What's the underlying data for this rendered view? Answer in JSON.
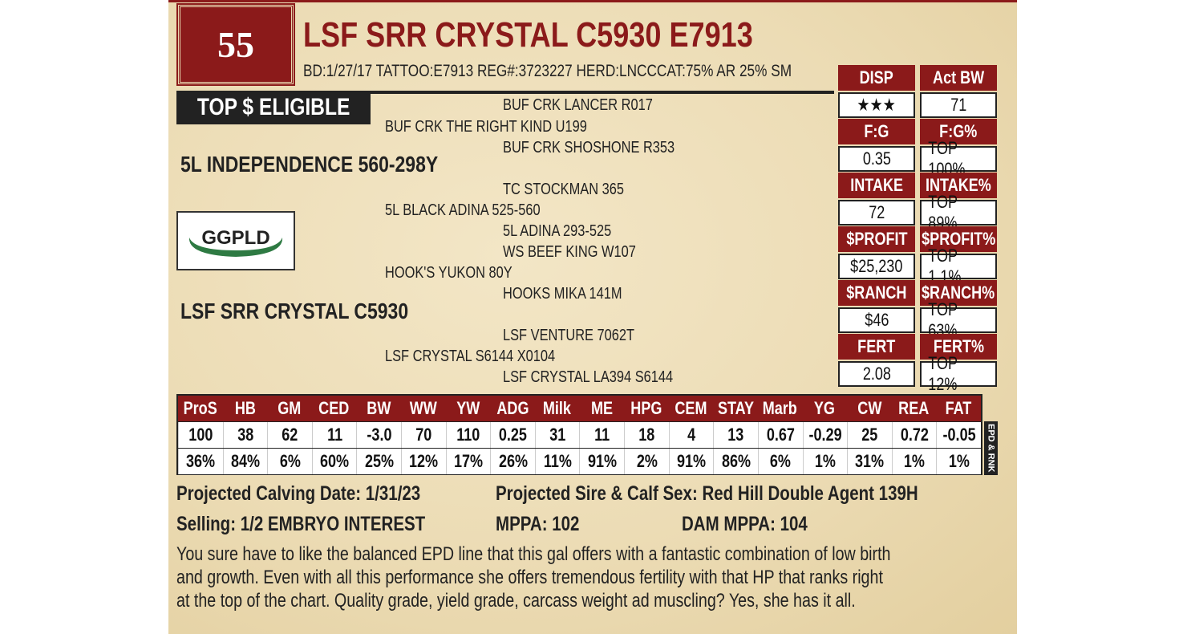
{
  "lot_number": "55",
  "title": "LSF SRR CRYSTAL C5930 E7913",
  "meta": "BD:1/27/17   TATTOO:E7913   REG#:3723227   HERD:LNCCCAT:75% AR 25% SM",
  "badge": "TOP $ ELIGIBLE",
  "logo_text": "GGPLD",
  "pedigree": {
    "sss": "BUF CRK LANCER R017",
    "ss": "BUF CRK THE RIGHT KIND U199",
    "ssd": "BUF CRK SHOSHONE R353",
    "sire": "5L INDEPENDENCE 560-298Y",
    "sds": "TC STOCKMAN 365",
    "sd": "5L BLACK ADINA 525-560",
    "sdd": "5L ADINA 293-525",
    "dss": "WS BEEF KING W107",
    "ds": "HOOK'S YUKON 80Y",
    "dsd": "HOOKS MIKA 141M",
    "dam": "LSF SRR CRYSTAL C5930",
    "dds": "LSF VENTURE 7062T",
    "dd": "LSF CRYSTAL S6144 X0104",
    "ddd": "LSF CRYSTAL LA394 S6144"
  },
  "panel": [
    {
      "h1": "DISP",
      "v1": "★★★",
      "h2": "Act BW",
      "v2": "71"
    },
    {
      "h1": "F:G",
      "v1": "0.35",
      "h2": "F:G%",
      "v2": "TOP 100%"
    },
    {
      "h1": "INTAKE",
      "v1": "72",
      "h2": "INTAKE%",
      "v2": "TOP 89%"
    },
    {
      "h1": "$PROFIT",
      "v1": "$25,230",
      "h2": "$PROFIT%",
      "v2": "TOP 1.1%"
    },
    {
      "h1": "$RANCH",
      "v1": "$46",
      "h2": "$RANCH%",
      "v2": "TOP 63%"
    },
    {
      "h1": "FERT",
      "v1": "2.08",
      "h2": "FERT%",
      "v2": "TOP 12%"
    }
  ],
  "epd": {
    "headers": [
      "ProS",
      "HB",
      "GM",
      "CED",
      "BW",
      "WW",
      "YW",
      "ADG",
      "Milk",
      "ME",
      "HPG",
      "CEM",
      "STAY",
      "Marb",
      "YG",
      "CW",
      "REA",
      "FAT"
    ],
    "values": [
      "100",
      "38",
      "62",
      "11",
      "-3.0",
      "70",
      "110",
      "0.25",
      "31",
      "11",
      "18",
      "4",
      "13",
      "0.67",
      "-0.29",
      "25",
      "0.72",
      "-0.05"
    ],
    "ranks": [
      "36%",
      "84%",
      "6%",
      "60%",
      "25%",
      "12%",
      "17%",
      "26%",
      "11%",
      "91%",
      "2%",
      "91%",
      "86%",
      "6%",
      "1%",
      "31%",
      "1%",
      "1%"
    ],
    "side_label": "EPD & RNK"
  },
  "footer": {
    "calving": "Projected Calving Date: 1/31/23",
    "sire_sex": "Projected Sire & Calf Sex: Red Hill Double Agent 139H",
    "selling": "Selling: 1/2 EMBRYO INTEREST",
    "mppa": "MPPA: 102",
    "dam_mppa": "DAM MPPA: 104",
    "description": [
      "You sure have to like the balanced EPD line that this gal offers with a fantastic combination of low birth",
      "and growth.  Even with all this performance she offers tremendous fertility with that HP that ranks right",
      "at the top of the chart.  Quality grade, yield grade, carcass weight ad muscling?  Yes, she has it all."
    ]
  },
  "colors": {
    "accent": "#8b1a1a",
    "parchment": "#ecdcb5"
  }
}
